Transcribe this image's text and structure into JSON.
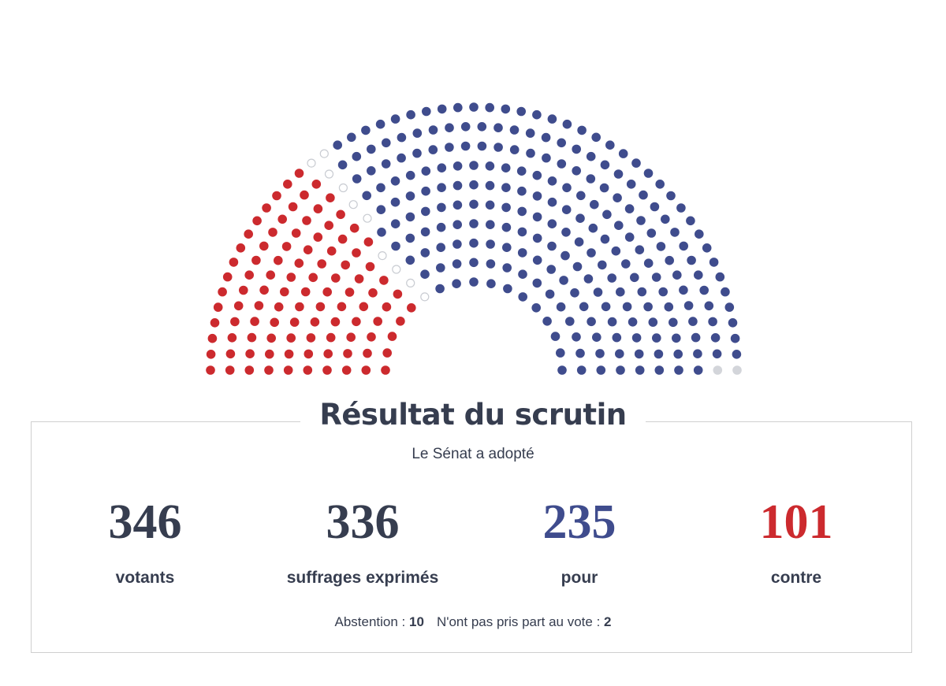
{
  "result": {
    "title": "Résultat du scrutin",
    "subtitle": "Le Sénat a adopté",
    "stats": [
      {
        "value": 346,
        "label": "votants",
        "color": "#363d4f"
      },
      {
        "value": 336,
        "label": "suffrages exprimés",
        "color": "#363d4f"
      },
      {
        "value": 235,
        "label": "pour",
        "color": "#3f4c8d"
      },
      {
        "value": 101,
        "label": "contre",
        "color": "#cc2a2e"
      }
    ],
    "details": [
      {
        "label": "Abstention :",
        "value": 10,
        "color": "#c9ccd2"
      },
      {
        "label": "N'ont pas pris part au vote :",
        "value": 2,
        "color": "#d3d5da"
      }
    ]
  }
}
